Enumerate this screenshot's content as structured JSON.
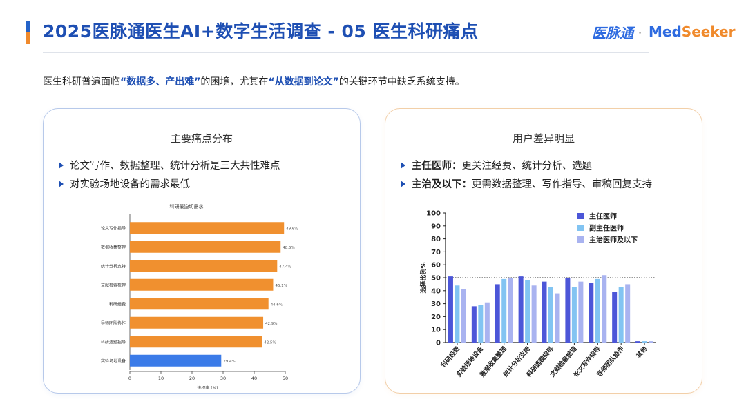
{
  "header": {
    "title": "2025医脉通医生AI+数字生活调查 - 05 医生科研痛点",
    "logo_left": "医脉通",
    "logo_sep": "·",
    "logo_right_a": "Med",
    "logo_right_b": "Seeker"
  },
  "intro": {
    "p1": "医生科研普遍面临",
    "hl1": "“数据多、产出难”",
    "p2": "的困境，尤其在",
    "hl2": "“从数据到论文”",
    "p3": "的关键环节中缺乏系统支持。"
  },
  "left_card": {
    "title": "主要痛点分布",
    "bullets": [
      "论文写作、数据整理、统计分析是三大共性难点",
      "对实验场地设备的需求最低"
    ]
  },
  "right_card": {
    "title": "用户差异明显",
    "bullets": [
      {
        "bold": "主任医师：",
        "text": "更关注经费、统计分析、选题"
      },
      {
        "bold": "主治及以下：",
        "text": "更需数据整理、写作指导、审稿回复支持"
      }
    ]
  },
  "colors": {
    "brand_blue": "#1e4fb3",
    "bar_orange": "#f0902f",
    "bar_highlight": "#3b7be8",
    "series_1": "#4c56d8",
    "series_2": "#82c4f2",
    "series_3": "#a9b3f0"
  },
  "chart_data": [
    {
      "type": "bar",
      "orientation": "horizontal",
      "title": "科研最迫切需求",
      "xlabel": "选择率 (%)",
      "ylabel": "",
      "xlim": [
        0,
        50
      ],
      "xticks": [
        0,
        10,
        20,
        30,
        40,
        50
      ],
      "categories": [
        "论文写作指导",
        "数据收集整理",
        "统计分析支持",
        "文献检索梳理",
        "科研经费",
        "导师团队协作",
        "科研选题指导",
        "实验场地设备"
      ],
      "values": [
        49.6,
        48.5,
        47.4,
        46.1,
        44.6,
        42.9,
        42.5,
        29.4
      ],
      "value_labels": [
        "49.6%",
        "48.5%",
        "47.4%",
        "46.1%",
        "44.6%",
        "42.9%",
        "42.5%",
        "29.4%"
      ],
      "grid": false
    },
    {
      "type": "bar",
      "orientation": "vertical",
      "title": "",
      "ylabel": "选择比例%",
      "xlabel": "",
      "ylim": [
        0,
        100
      ],
      "yticks": [
        0,
        10,
        20,
        30,
        40,
        50,
        60,
        70,
        80,
        90,
        100
      ],
      "reference_line": 50,
      "legend_position": "top-right",
      "categories": [
        "科研经费",
        "实验场地设备",
        "数据收集整理",
        "统计分析支持",
        "科研选题指导",
        "文献检索梳理",
        "论文写作指导",
        "导师团队协作",
        "其他"
      ],
      "series": [
        {
          "name": "主任医师",
          "values": [
            51,
            28,
            45,
            51,
            47,
            50,
            46,
            39,
            1
          ]
        },
        {
          "name": "副主任医师",
          "values": [
            44,
            29,
            49,
            48,
            43,
            43,
            49,
            43,
            1
          ]
        },
        {
          "name": "主治医师及以下",
          "values": [
            41,
            31,
            50,
            44,
            38,
            47,
            52,
            45,
            1
          ]
        }
      ]
    }
  ]
}
